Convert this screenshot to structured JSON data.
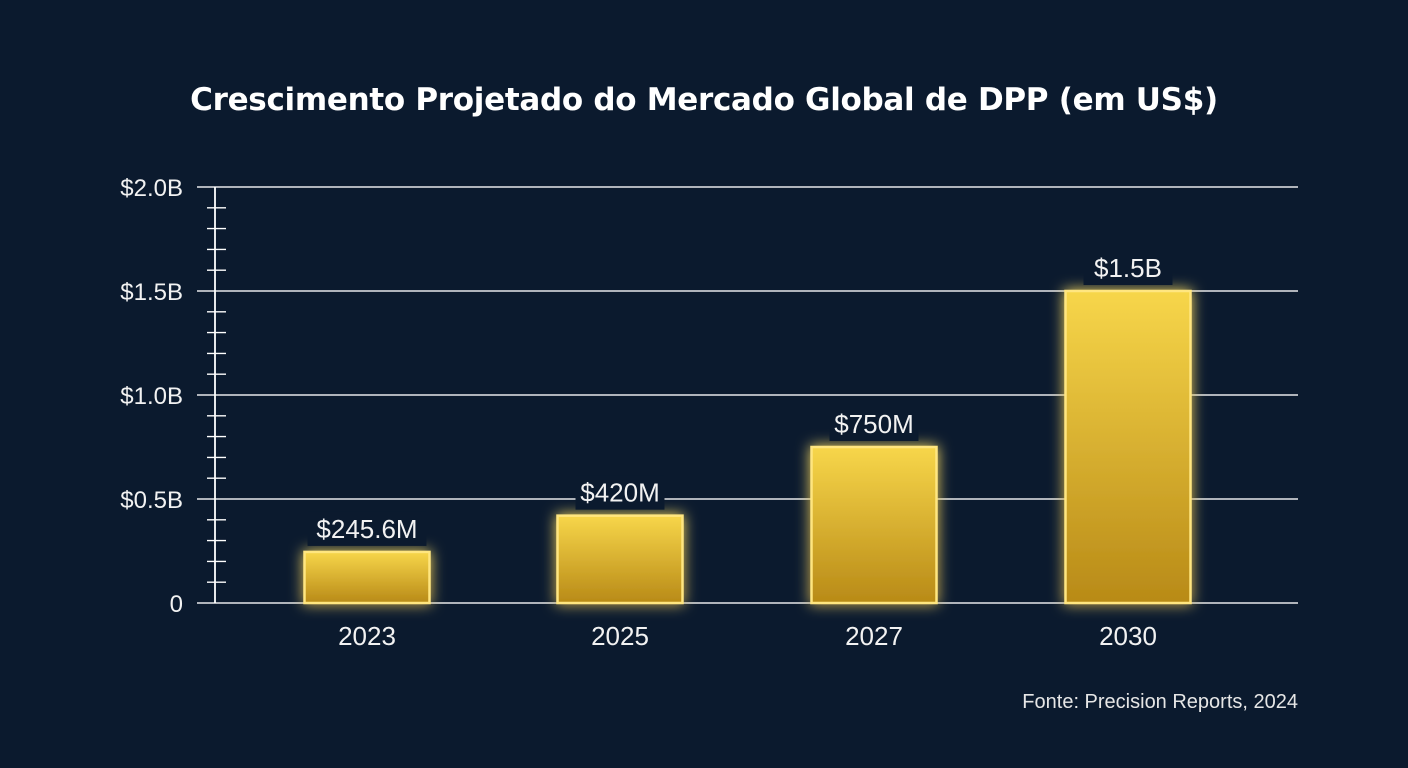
{
  "chart_data": {
    "type": "bar",
    "title": "Crescimento Projetado do Mercado Global de DPP (em US$)",
    "xlabel": "",
    "ylabel": "",
    "categories": [
      "2023",
      "2025",
      "2027",
      "2030"
    ],
    "values": [
      0.2456,
      0.42,
      0.75,
      1.5
    ],
    "value_unit": "billion US$",
    "data_labels": [
      "$245.6M",
      "$420M",
      "$750M",
      "$1.5B"
    ],
    "ylim": [
      0,
      2.0
    ],
    "yticks": [
      0,
      0.5,
      1.0,
      1.5,
      2.0
    ],
    "ytick_labels": [
      "0",
      "$0.5B",
      "$1.0B",
      "$1.5B",
      "$2.0B"
    ],
    "grid": true,
    "source": "Fonte: Precision Reports, 2024"
  },
  "colors": {
    "background": "#0b1a2e",
    "bar_top": "#f7d64a",
    "bar_bottom": "#b88a17",
    "bar_edge": "#ffe680",
    "gridline": "#ffffff",
    "text": "#f2f2f2"
  }
}
